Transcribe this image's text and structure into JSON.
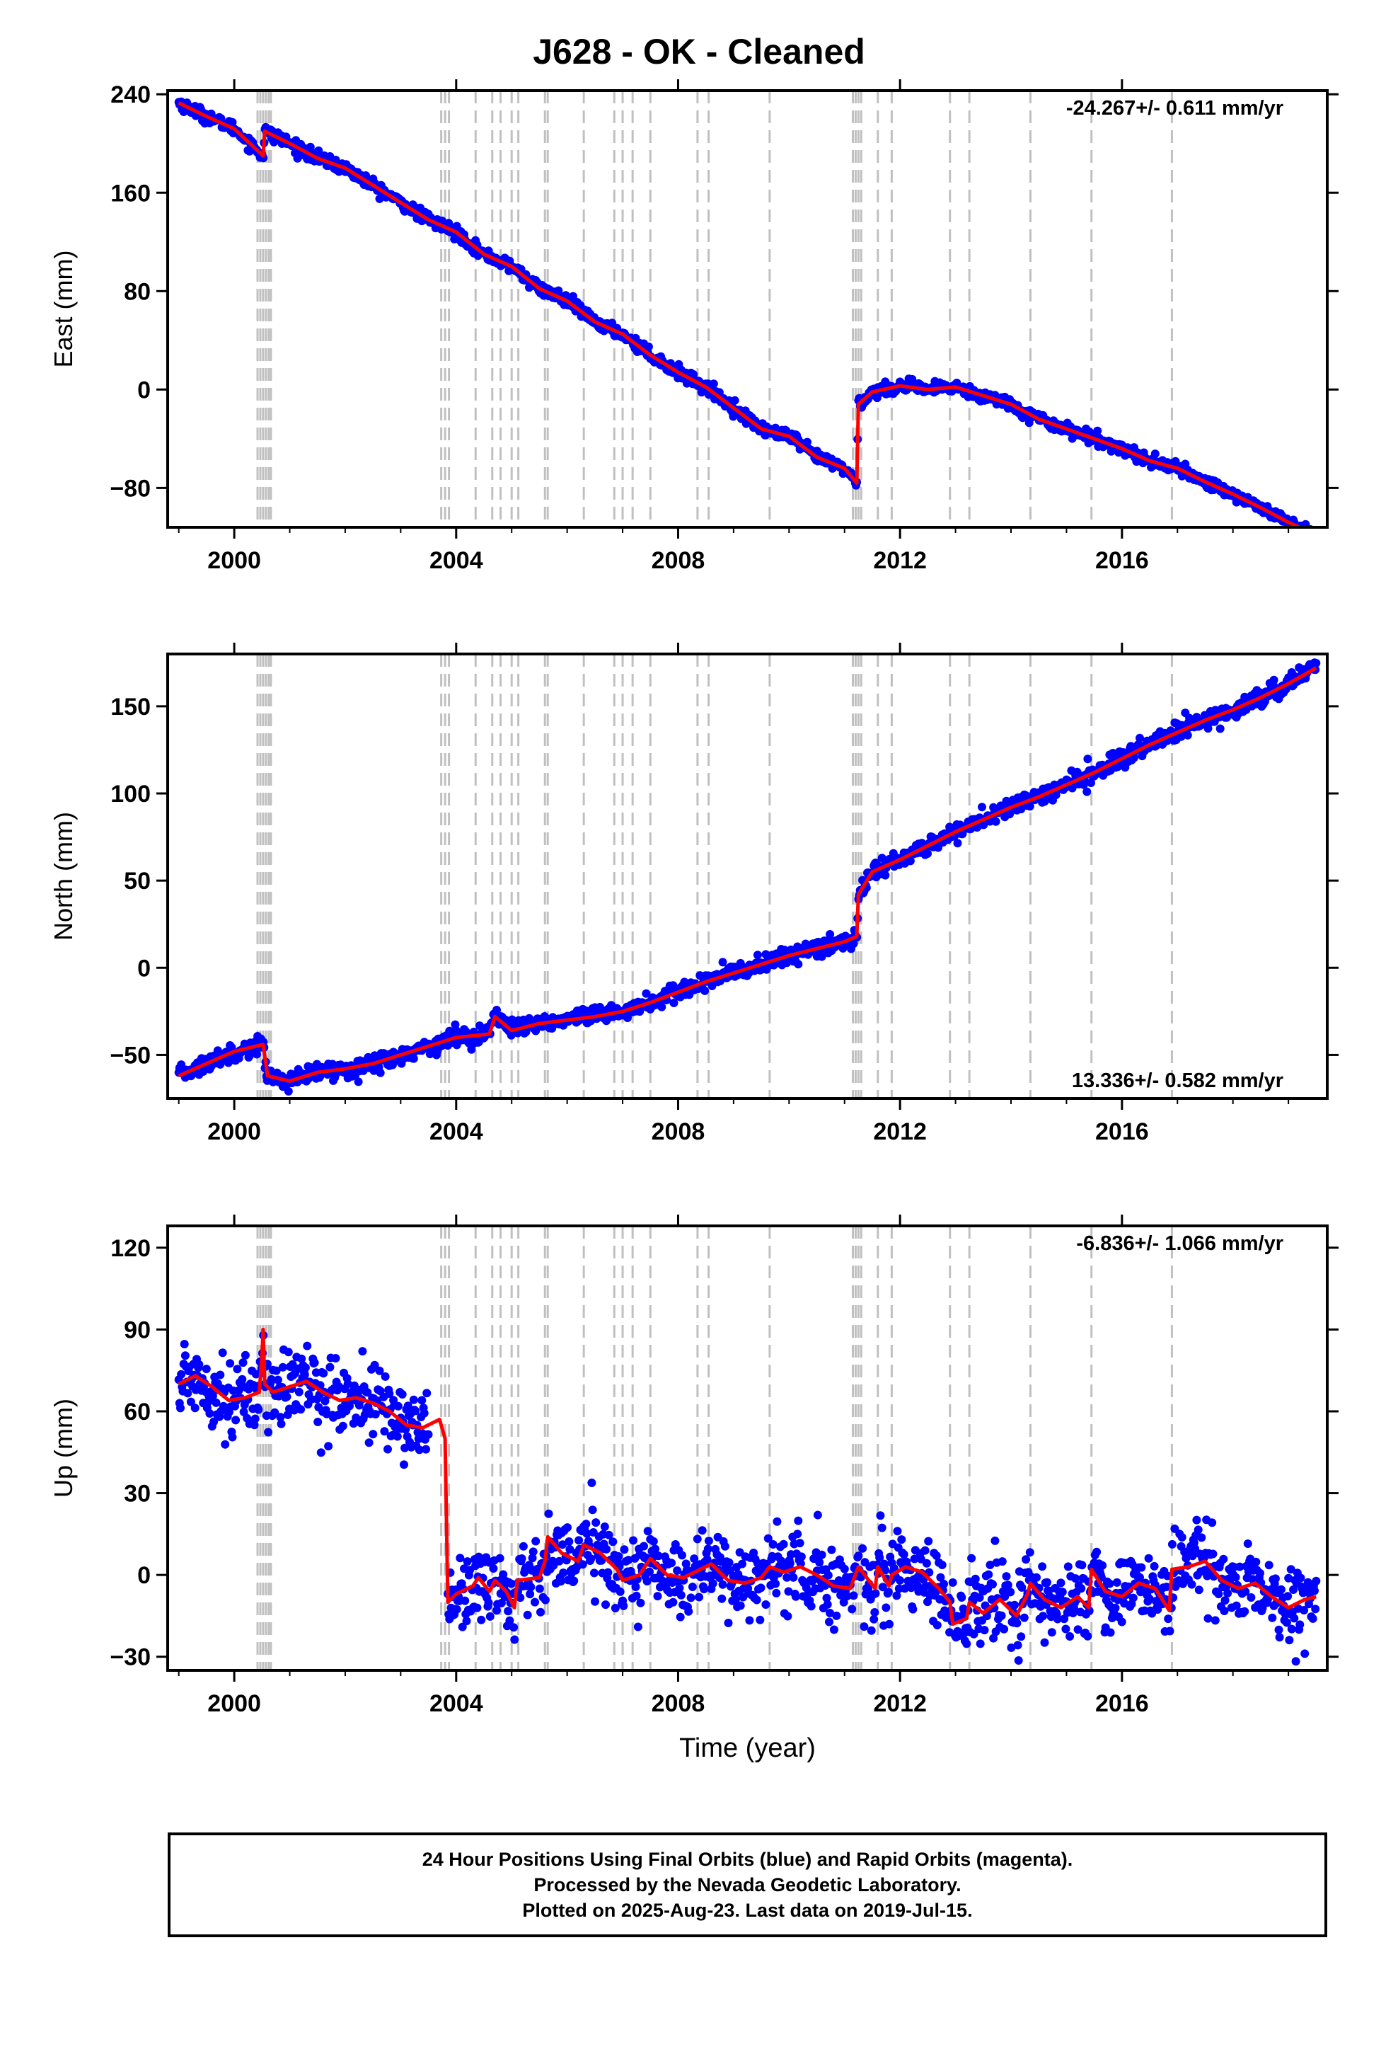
{
  "title": "J628  - OK - Cleaned",
  "footer": {
    "line1": "24 Hour Positions Using Final Orbits (blue) and Rapid Orbits (magenta).",
    "line2": "Processed by the Nevada Geodetic Laboratory.",
    "line3": "Plotted on 2025-Aug-23. Last data on 2019-Jul-15."
  },
  "colors": {
    "data_points": "#0000ff",
    "model_fit": "#ff0000",
    "event_lines": "#c0c0c0",
    "frame": "#000000"
  },
  "event_lines_years": [
    2000.42,
    2000.47,
    2000.52,
    2000.57,
    2000.62,
    2000.66,
    2003.73,
    2003.8,
    2003.87,
    2004.35,
    2004.65,
    2004.8,
    2005.0,
    2005.12,
    2005.6,
    2005.65,
    2006.3,
    2006.85,
    2007.0,
    2007.18,
    2007.5,
    2008.35,
    2008.55,
    2009.65,
    2011.15,
    2011.2,
    2011.25,
    2011.3,
    2011.6,
    2011.85,
    2012.9,
    2013.25,
    2014.35,
    2015.45,
    2016.9
  ],
  "chart_data": [
    {
      "type": "scatter",
      "panel": "east",
      "title": "",
      "xlabel": "",
      "ylabel": "East (mm)",
      "xlim": [
        1998.8,
        2019.7
      ],
      "ylim": [
        -112,
        243
      ],
      "xticks": [
        2000,
        2004,
        2008,
        2012,
        2016
      ],
      "xtick_labels": [
        "2000",
        "2004",
        "2008",
        "2012",
        "2016"
      ],
      "yticks": [
        240,
        160,
        80,
        0,
        -80
      ],
      "ytick_labels": [
        "240",
        "160",
        "80",
        "0",
        "−80"
      ],
      "rate_label": "-24.267+/- 0.611 mm/yr",
      "rate_position": "top-right",
      "noise_mm": 2.5,
      "series": [
        {
          "role": "data",
          "x": [
            1999.0,
            1999.5,
            2000.0,
            2000.52,
            2000.55,
            2001.0,
            2001.5,
            2002.0,
            2002.5,
            2003.0,
            2003.5,
            2003.8,
            2004.0,
            2004.5,
            2005.0,
            2005.5,
            2006.0,
            2006.5,
            2007.0,
            2007.5,
            2008.0,
            2008.5,
            2009.0,
            2009.5,
            2010.0,
            2010.5,
            2011.0,
            2011.22,
            2011.25,
            2011.5,
            2012.0,
            2012.5,
            2013.0,
            2013.5,
            2014.0,
            2014.5,
            2015.0,
            2015.5,
            2016.0,
            2016.5,
            2017.0,
            2017.5,
            2018.0,
            2018.5,
            2019.0,
            2019.5
          ],
          "y": [
            233,
            222,
            212,
            190,
            210,
            200,
            188,
            180,
            166,
            152,
            138,
            132,
            128,
            110,
            100,
            82,
            72,
            55,
            45,
            28,
            14,
            2,
            -15,
            -32,
            -38,
            -55,
            -64,
            -76,
            -12,
            -2,
            3,
            0,
            2,
            -5,
            -12,
            -24,
            -32,
            -40,
            -48,
            -58,
            -64,
            -75,
            -85,
            -96,
            -108,
            -118
          ]
        },
        {
          "role": "fit",
          "x": [
            1999.0,
            1999.5,
            2000.0,
            2000.52,
            2000.55,
            2001.0,
            2001.5,
            2002.0,
            2002.5,
            2003.0,
            2003.5,
            2003.8,
            2004.0,
            2004.5,
            2005.0,
            2005.5,
            2006.0,
            2006.5,
            2007.0,
            2007.5,
            2008.0,
            2008.5,
            2009.0,
            2009.5,
            2010.0,
            2010.5,
            2011.0,
            2011.22,
            2011.25,
            2011.5,
            2012.0,
            2012.5,
            2013.0,
            2013.5,
            2014.0,
            2014.5,
            2015.0,
            2015.5,
            2016.0,
            2016.5,
            2017.0,
            2017.5,
            2018.0,
            2018.5,
            2019.0,
            2019.5
          ],
          "y": [
            233,
            222,
            212,
            190,
            210,
            200,
            188,
            180,
            166,
            152,
            138,
            132,
            128,
            110,
            100,
            82,
            72,
            55,
            45,
            28,
            14,
            2,
            -15,
            -32,
            -38,
            -55,
            -64,
            -76,
            -12,
            -2,
            3,
            0,
            2,
            -5,
            -12,
            -24,
            -32,
            -40,
            -48,
            -58,
            -64,
            -75,
            -85,
            -96,
            -108,
            -118
          ]
        }
      ]
    },
    {
      "type": "scatter",
      "panel": "north",
      "title": "",
      "xlabel": "",
      "ylabel": "North (mm)",
      "xlim": [
        1998.8,
        2019.7
      ],
      "ylim": [
        -75,
        180
      ],
      "xticks": [
        2000,
        2004,
        2008,
        2012,
        2016
      ],
      "xtick_labels": [
        "2000",
        "2004",
        "2008",
        "2012",
        "2016"
      ],
      "yticks": [
        150,
        100,
        50,
        0,
        -50
      ],
      "ytick_labels": [
        "150",
        "100",
        "50",
        "0",
        "−50"
      ],
      "rate_label": "13.336+/- 0.582 mm/yr",
      "rate_position": "bottom-right",
      "noise_mm": 2.5,
      "series": [
        {
          "role": "data",
          "x": [
            1999.0,
            1999.5,
            2000.0,
            2000.52,
            2000.6,
            2001.0,
            2001.5,
            2002.0,
            2002.5,
            2003.0,
            2003.5,
            2004.0,
            2004.6,
            2004.7,
            2005.0,
            2005.5,
            2006.0,
            2006.5,
            2007.0,
            2007.5,
            2008.0,
            2008.5,
            2009.0,
            2009.5,
            2010.0,
            2010.5,
            2011.0,
            2011.22,
            2011.25,
            2011.5,
            2012.0,
            2012.5,
            2013.0,
            2013.5,
            2014.0,
            2014.5,
            2015.0,
            2015.5,
            2016.0,
            2016.5,
            2017.0,
            2017.5,
            2018.0,
            2018.5,
            2019.0,
            2019.5
          ],
          "y": [
            -62,
            -55,
            -48,
            -44,
            -62,
            -65,
            -60,
            -58,
            -55,
            -50,
            -45,
            -40,
            -38,
            -25,
            -36,
            -32,
            -30,
            -28,
            -25,
            -20,
            -14,
            -8,
            -3,
            2,
            7,
            11,
            15,
            18,
            42,
            55,
            62,
            70,
            78,
            85,
            92,
            98,
            105,
            112,
            120,
            128,
            135,
            142,
            148,
            155,
            163,
            174
          ]
        },
        {
          "role": "fit",
          "x": [
            1999.0,
            1999.5,
            2000.0,
            2000.52,
            2000.6,
            2001.0,
            2001.5,
            2002.0,
            2002.5,
            2003.0,
            2003.5,
            2004.0,
            2004.6,
            2004.7,
            2005.0,
            2005.5,
            2006.0,
            2006.5,
            2007.0,
            2007.5,
            2008.0,
            2008.5,
            2009.0,
            2009.5,
            2010.0,
            2010.5,
            2011.0,
            2011.22,
            2011.25,
            2011.5,
            2012.0,
            2012.5,
            2013.0,
            2013.5,
            2014.0,
            2014.5,
            2015.0,
            2015.5,
            2016.0,
            2016.5,
            2017.0,
            2017.5,
            2018.0,
            2018.5,
            2019.0,
            2019.5
          ],
          "y": [
            -62,
            -55,
            -48,
            -44,
            -62,
            -65,
            -60,
            -58,
            -55,
            -50,
            -45,
            -40,
            -38,
            -28,
            -36,
            -32,
            -30,
            -28,
            -25,
            -20,
            -14,
            -8,
            -3,
            2,
            7,
            11,
            15,
            18,
            42,
            55,
            62,
            70,
            78,
            85,
            92,
            98,
            105,
            112,
            120,
            128,
            135,
            142,
            148,
            155,
            163,
            172
          ]
        }
      ]
    },
    {
      "type": "scatter",
      "panel": "up",
      "title": "",
      "xlabel": "Time (year)",
      "ylabel": "Up (mm)",
      "xlim": [
        1998.8,
        2019.7
      ],
      "ylim": [
        -35,
        128
      ],
      "xticks": [
        2000,
        2004,
        2008,
        2012,
        2016
      ],
      "xtick_labels": [
        "2000",
        "2004",
        "2008",
        "2012",
        "2016"
      ],
      "yticks": [
        120,
        90,
        60,
        30,
        0,
        -30
      ],
      "ytick_labels": [
        "120",
        "90",
        "60",
        "30",
        "0",
        "−30"
      ],
      "rate_label": "-6.836+/- 1.066 mm/yr",
      "rate_position": "top-right",
      "noise_mm": 7,
      "data_end_gap": [
        2003.5,
        2003.85
      ],
      "series": [
        {
          "role": "fit",
          "x": [
            1999.0,
            1999.3,
            1999.6,
            1999.9,
            2000.2,
            2000.45,
            2000.5,
            2000.52,
            2000.55,
            2000.7,
            2001.0,
            2001.3,
            2001.6,
            2001.9,
            2002.2,
            2002.5,
            2002.8,
            2003.1,
            2003.4,
            2003.7,
            2003.8,
            2003.85,
            2004.0,
            2004.3,
            2004.4,
            2004.6,
            2004.7,
            2004.9,
            2005.05,
            2005.1,
            2005.5,
            2005.6,
            2005.65,
            2005.9,
            2006.2,
            2006.3,
            2006.6,
            2006.9,
            2007.0,
            2007.3,
            2007.5,
            2007.8,
            2008.1,
            2008.4,
            2008.6,
            2008.9,
            2009.2,
            2009.5,
            2009.65,
            2009.9,
            2010.2,
            2010.5,
            2010.8,
            2011.1,
            2011.25,
            2011.55,
            2011.6,
            2011.8,
            2011.85,
            2012.1,
            2012.4,
            2012.7,
            2012.9,
            2012.95,
            2013.2,
            2013.25,
            2013.5,
            2013.8,
            2014.1,
            2014.3,
            2014.35,
            2014.6,
            2014.9,
            2015.2,
            2015.4,
            2015.45,
            2015.7,
            2016.0,
            2016.3,
            2016.6,
            2016.85,
            2016.9,
            2017.2,
            2017.5,
            2017.8,
            2018.1,
            2018.4,
            2018.7,
            2019.0,
            2019.3,
            2019.5
          ],
          "y": [
            70,
            73,
            69,
            64,
            65,
            67,
            80,
            90,
            70,
            67,
            69,
            71,
            67,
            64,
            65,
            63,
            60,
            55,
            54,
            57,
            50,
            -10,
            -7,
            -4,
            -1,
            -6,
            -2,
            -6,
            -12,
            -2,
            -1,
            5,
            14,
            8,
            5,
            11,
            8,
            2,
            -2,
            0,
            6,
            0,
            -1,
            2,
            4,
            -2,
            -3,
            -1,
            3,
            1,
            3,
            0,
            -4,
            -5,
            3,
            -5,
            3,
            -4,
            0,
            3,
            1,
            -5,
            -10,
            -18,
            -16,
            -10,
            -14,
            -9,
            -15,
            -7,
            -3,
            -9,
            -12,
            -8,
            -12,
            2,
            -6,
            -8,
            -3,
            -5,
            -13,
            2,
            3,
            5,
            -2,
            -5,
            -3,
            -8,
            -12,
            -9,
            -8
          ]
        }
      ]
    }
  ]
}
